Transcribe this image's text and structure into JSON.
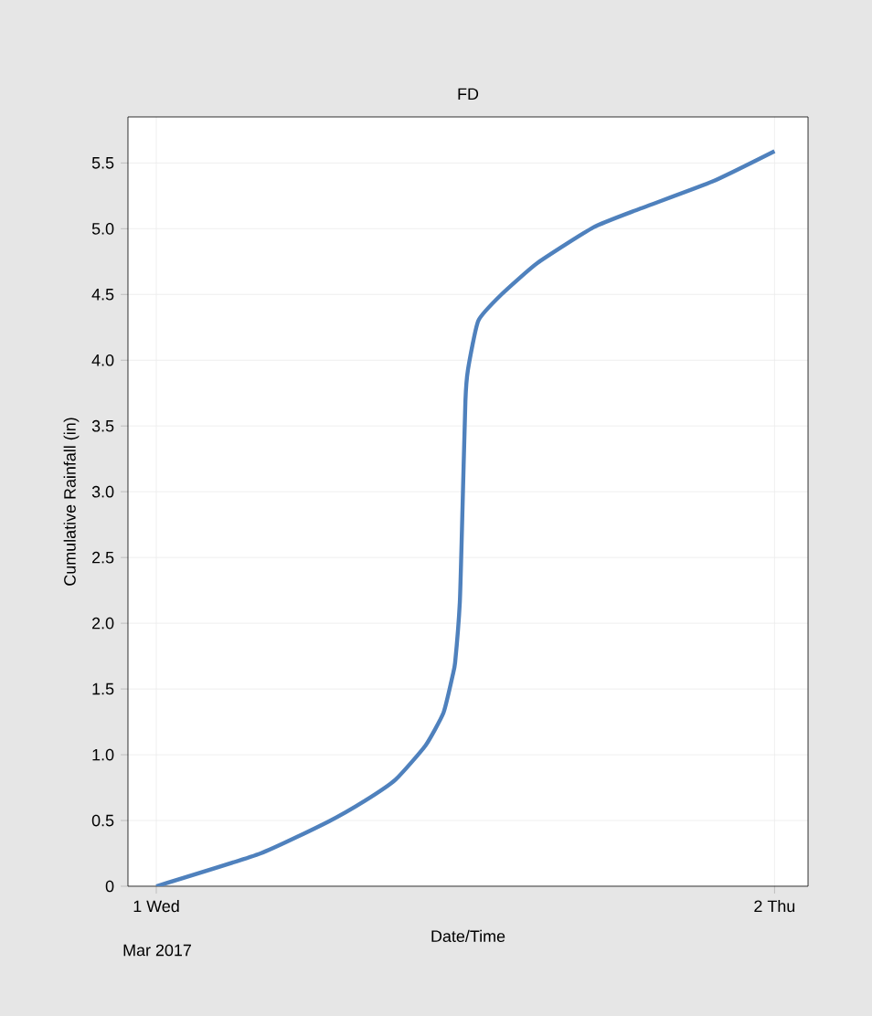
{
  "chart_data": {
    "type": "line",
    "title": "FD",
    "xlabel": "Date/Time",
    "ylabel": "Cumulative Rainfall (in)",
    "x": [
      "2017-03-01T00:00",
      "2017-03-01T04:03",
      "2017-03-01T06:40",
      "2017-03-01T08:06",
      "2017-03-01T09:17",
      "2017-03-01T10:27",
      "2017-03-01T11:09",
      "2017-03-01T11:30",
      "2017-03-01T11:36",
      "2017-03-01T11:47",
      "2017-03-01T11:52",
      "2017-03-01T12:00",
      "2017-03-01T12:06",
      "2017-03-01T12:30",
      "2017-03-01T13:24",
      "2017-03-01T14:48",
      "2017-03-01T16:58",
      "2017-03-01T18:45",
      "2017-03-01T21:36",
      "2017-03-02T00:00"
    ],
    "series": [
      {
        "color": "#4f81bd",
        "values": [
          0,
          0.25,
          0.49,
          0.65,
          0.81,
          1.07,
          1.32,
          1.6,
          1.7,
          2.16,
          2.72,
          3.69,
          3.93,
          4.3,
          4.5,
          4.74,
          5.01,
          5.15,
          5.36,
          5.59
        ]
      }
    ],
    "xlim": [
      "2017-02-28T22:54",
      "2017-03-02T01:18"
    ],
    "ylim": [
      0,
      5.85
    ],
    "xticks": [
      {
        "value": "2017-03-01",
        "label": "1 Wed"
      },
      {
        "value": "2017-03-02",
        "label": "2 Thu"
      }
    ],
    "yticks": [
      0,
      0.5,
      {
        "value": 1,
        "label": "1.0"
      },
      1.5,
      {
        "value": 2,
        "label": "2.0"
      },
      2.5,
      {
        "value": 3,
        "label": "3.0"
      },
      3.5,
      {
        "value": 4,
        "label": "4.0"
      },
      4.5,
      {
        "value": 5,
        "label": "5.0"
      },
      5.5
    ],
    "annotations": [
      "Mar 2017"
    ],
    "grid": true,
    "marker": "none",
    "line_style": "solid"
  }
}
